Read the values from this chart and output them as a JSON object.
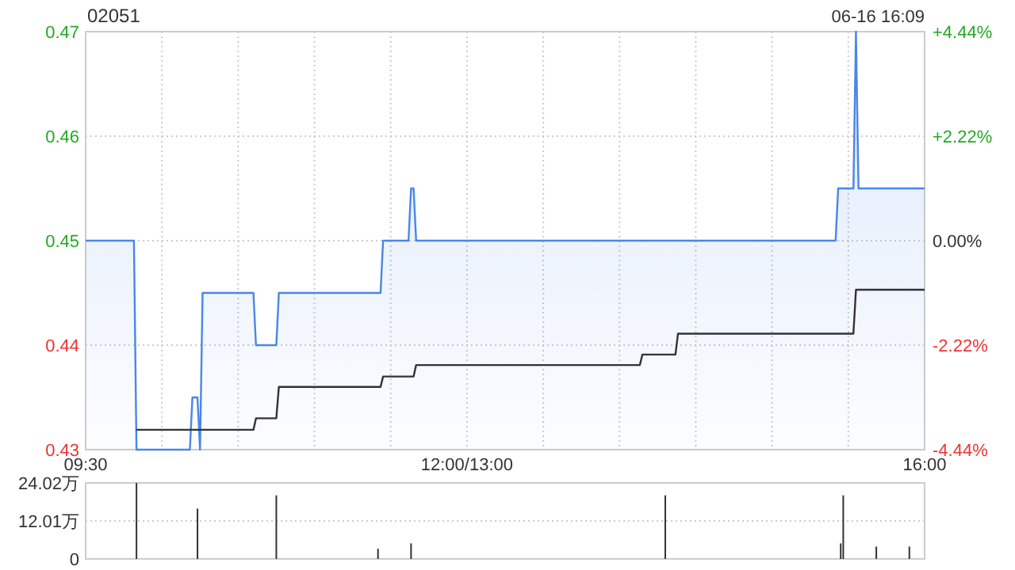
{
  "chart_data": [
    {
      "type": "line",
      "title": "02051",
      "annotations": [
        "06-16 16:09"
      ],
      "categories": [
        "09:30",
        null,
        null,
        null,
        null,
        null,
        null,
        null,
        null,
        null,
        null,
        null,
        null,
        null,
        null,
        null,
        null,
        null,
        null,
        null,
        null,
        null,
        null,
        null,
        null,
        null,
        null,
        null,
        null,
        null,
        null,
        null,
        null,
        null,
        null,
        null,
        null,
        null,
        null,
        null,
        null,
        null,
        null,
        null,
        null,
        null,
        null,
        null,
        null,
        null,
        null,
        null,
        null,
        null,
        null,
        null,
        null,
        null,
        null,
        null,
        null,
        null,
        null,
        null,
        null,
        null,
        null,
        null,
        null,
        null,
        null,
        null,
        null,
        null,
        null,
        null,
        null,
        null,
        null,
        null,
        null,
        null,
        null,
        null,
        null,
        null,
        null,
        null,
        null,
        null,
        null,
        null,
        null,
        null,
        null,
        null,
        null,
        null,
        null,
        null,
        null,
        null,
        null,
        null,
        null,
        null,
        null,
        null,
        null,
        null,
        null,
        null,
        null,
        null,
        null,
        null,
        null,
        null,
        null,
        null,
        null,
        null,
        null,
        null,
        null,
        null,
        null,
        null,
        null,
        null,
        null,
        null,
        null,
        null,
        null,
        null,
        null,
        null,
        null,
        null,
        null,
        null,
        null,
        null,
        null,
        null,
        null,
        null,
        null,
        null,
        "12:00/13:00",
        null,
        null,
        null,
        null,
        null,
        null,
        null,
        null,
        null,
        null,
        null,
        null,
        null,
        null,
        null,
        null,
        null,
        null,
        null,
        null,
        null,
        null,
        null,
        null,
        null,
        null,
        null,
        null,
        null,
        null,
        null,
        null,
        null,
        null,
        null,
        null,
        null,
        null,
        null,
        null,
        null,
        null,
        null,
        null,
        null,
        null,
        null,
        null,
        null,
        null,
        null,
        null,
        null,
        null,
        null,
        null,
        null,
        null,
        null,
        null,
        null,
        null,
        null,
        null,
        null,
        null,
        null,
        null,
        null,
        null,
        null,
        null,
        null,
        null,
        null,
        null,
        null,
        null,
        null,
        null,
        null,
        null,
        null,
        null,
        null,
        null,
        null,
        null,
        null,
        null,
        null,
        null,
        null,
        null,
        null,
        null,
        null,
        null,
        null,
        null,
        null,
        null,
        null,
        null,
        null,
        null,
        null,
        null,
        null,
        null,
        null,
        null,
        null,
        null,
        null,
        null,
        null,
        null,
        null,
        null,
        null,
        null,
        null,
        null,
        null,
        null,
        null,
        null,
        null,
        null,
        null,
        null,
        null,
        null,
        null,
        null,
        null,
        null,
        null,
        null,
        null,
        null,
        null,
        null,
        null,
        null,
        null,
        null,
        null,
        null,
        null,
        null,
        null,
        null,
        null,
        null,
        null,
        null,
        null,
        null,
        null,
        null,
        null,
        null,
        null,
        null,
        null,
        null,
        null,
        null,
        null,
        null,
        null,
        null,
        null,
        null,
        null,
        null,
        null,
        "16:00"
      ],
      "series": [
        {
          "type": "area",
          "color": "#4a86e8",
          "values": [
            0.45,
            0.45,
            0.45,
            0.45,
            0.45,
            0.45,
            0.45,
            0.45,
            0.45,
            0.45,
            0.45,
            0.45,
            0.45,
            0.45,
            0.45,
            0.45,
            0.45,
            0.45,
            0.45,
            0.45,
            0.43,
            0.43,
            0.43,
            0.43,
            0.43,
            0.43,
            0.43,
            0.43,
            0.43,
            0.43,
            0.43,
            0.43,
            0.43,
            0.43,
            0.43,
            0.43,
            0.43,
            0.43,
            0.43,
            0.43,
            0.43,
            0.43,
            0.435,
            0.435,
            0.435,
            0.43,
            0.445,
            0.445,
            0.445,
            0.445,
            0.445,
            0.445,
            0.445,
            0.445,
            0.445,
            0.445,
            0.445,
            0.445,
            0.445,
            0.445,
            0.445,
            0.445,
            0.445,
            0.445,
            0.445,
            0.445,
            0.445,
            0.44,
            0.44,
            0.44,
            0.44,
            0.44,
            0.44,
            0.44,
            0.44,
            0.44,
            0.445,
            0.445,
            0.445,
            0.445,
            0.445,
            0.445,
            0.445,
            0.445,
            0.445,
            0.445,
            0.445,
            0.445,
            0.445,
            0.445,
            0.445,
            0.445,
            0.445,
            0.445,
            0.445,
            0.445,
            0.445,
            0.445,
            0.445,
            0.445,
            0.445,
            0.445,
            0.445,
            0.445,
            0.445,
            0.445,
            0.445,
            0.445,
            0.445,
            0.445,
            0.445,
            0.445,
            0.445,
            0.445,
            0.445,
            0.445,
            0.445,
            0.45,
            0.45,
            0.45,
            0.45,
            0.45,
            0.45,
            0.45,
            0.45,
            0.45,
            0.45,
            0.45,
            0.455,
            0.455,
            0.45,
            0.45,
            0.45,
            0.45,
            0.45,
            0.45,
            0.45,
            0.45,
            0.45,
            0.45,
            0.45,
            0.45,
            0.45,
            0.45,
            0.45,
            0.45,
            0.45,
            0.45,
            0.45,
            0.45,
            0.45,
            0.45,
            0.45,
            0.45,
            0.45,
            0.45,
            0.45,
            0.45,
            0.45,
            0.45,
            0.45,
            0.45,
            0.45,
            0.45,
            0.45,
            0.45,
            0.45,
            0.45,
            0.45,
            0.45,
            0.45,
            0.45,
            0.45,
            0.45,
            0.45,
            0.45,
            0.45,
            0.45,
            0.45,
            0.45,
            0.45,
            0.45,
            0.45,
            0.45,
            0.45,
            0.45,
            0.45,
            0.45,
            0.45,
            0.45,
            0.45,
            0.45,
            0.45,
            0.45,
            0.45,
            0.45,
            0.45,
            0.45,
            0.45,
            0.45,
            0.45,
            0.45,
            0.45,
            0.45,
            0.45,
            0.45,
            0.45,
            0.45,
            0.45,
            0.45,
            0.45,
            0.45,
            0.45,
            0.45,
            0.45,
            0.45,
            0.45,
            0.45,
            0.45,
            0.45,
            0.45,
            0.45,
            0.45,
            0.45,
            0.45,
            0.45,
            0.45,
            0.45,
            0.45,
            0.45,
            0.45,
            0.45,
            0.45,
            0.45,
            0.45,
            0.45,
            0.45,
            0.45,
            0.45,
            0.45,
            0.45,
            0.45,
            0.45,
            0.45,
            0.45,
            0.45,
            0.45,
            0.45,
            0.45,
            0.45,
            0.45,
            0.45,
            0.45,
            0.45,
            0.45,
            0.45,
            0.45,
            0.45,
            0.45,
            0.45,
            0.45,
            0.45,
            0.45,
            0.45,
            0.45,
            0.45,
            0.45,
            0.45,
            0.45,
            0.45,
            0.45,
            0.45,
            0.45,
            0.45,
            0.45,
            0.45,
            0.45,
            0.45,
            0.45,
            0.45,
            0.45,
            0.45,
            0.45,
            0.45,
            0.45,
            0.45,
            0.45,
            0.45,
            0.45,
            0.45,
            0.45,
            0.45,
            0.45,
            0.45,
            0.45,
            0.45,
            0.455,
            0.455,
            0.455,
            0.455,
            0.455,
            0.455,
            0.455,
            0.47,
            0.455,
            0.455,
            0.455,
            0.455,
            0.455,
            0.455,
            0.455,
            0.455,
            0.455,
            0.455,
            0.455,
            0.455,
            0.455,
            0.455,
            0.455,
            0.455,
            0.455,
            0.455,
            0.455,
            0.455,
            0.455,
            0.455,
            0.455,
            0.455,
            0.455,
            0.455,
            0.455
          ]
        },
        {
          "type": "line",
          "color": "#333333",
          "values": [
            null,
            null,
            null,
            null,
            null,
            null,
            null,
            null,
            null,
            null,
            null,
            null,
            null,
            null,
            null,
            null,
            null,
            null,
            null,
            null,
            0.4319,
            0.4319,
            0.4319,
            0.4319,
            0.4319,
            0.4319,
            0.4319,
            0.4319,
            0.4319,
            0.4319,
            0.4319,
            0.4319,
            0.4319,
            0.4319,
            0.4319,
            0.4319,
            0.4319,
            0.4319,
            0.4319,
            0.4319,
            0.4319,
            0.4319,
            0.4319,
            0.4319,
            0.4319,
            0.4319,
            0.4319,
            0.4319,
            0.4319,
            0.4319,
            0.4319,
            0.4319,
            0.4319,
            0.4319,
            0.4319,
            0.4319,
            0.4319,
            0.4319,
            0.4319,
            0.4319,
            0.4319,
            0.4319,
            0.4319,
            0.4319,
            0.4319,
            0.4319,
            0.4319,
            0.433,
            0.433,
            0.433,
            0.433,
            0.433,
            0.433,
            0.433,
            0.433,
            0.433,
            0.436,
            0.436,
            0.436,
            0.436,
            0.436,
            0.436,
            0.436,
            0.436,
            0.436,
            0.436,
            0.436,
            0.436,
            0.436,
            0.436,
            0.436,
            0.436,
            0.436,
            0.436,
            0.436,
            0.436,
            0.436,
            0.436,
            0.436,
            0.436,
            0.436,
            0.436,
            0.436,
            0.436,
            0.436,
            0.436,
            0.436,
            0.436,
            0.436,
            0.436,
            0.436,
            0.436,
            0.436,
            0.436,
            0.436,
            0.436,
            0.436,
            0.437,
            0.437,
            0.437,
            0.437,
            0.437,
            0.437,
            0.437,
            0.437,
            0.437,
            0.437,
            0.437,
            0.437,
            0.437,
            0.4381,
            0.4381,
            0.4381,
            0.4381,
            0.4381,
            0.4381,
            0.4381,
            0.4381,
            0.4381,
            0.4381,
            0.4381,
            0.4381,
            0.4381,
            0.4381,
            0.4381,
            0.4381,
            0.4381,
            0.4381,
            0.4381,
            0.4381,
            0.4381,
            0.4381,
            0.4381,
            0.4381,
            0.4381,
            0.4381,
            0.4381,
            0.4381,
            0.4381,
            0.4381,
            0.4381,
            0.4381,
            0.4381,
            0.4381,
            0.4381,
            0.4381,
            0.4381,
            0.4381,
            0.4381,
            0.4381,
            0.4381,
            0.4381,
            0.4381,
            0.4381,
            0.4381,
            0.4381,
            0.4381,
            0.4381,
            0.4381,
            0.4381,
            0.4381,
            0.4381,
            0.4381,
            0.4381,
            0.4381,
            0.4381,
            0.4381,
            0.4381,
            0.4381,
            0.4381,
            0.4381,
            0.4381,
            0.4381,
            0.4381,
            0.4381,
            0.4381,
            0.4381,
            0.4381,
            0.4381,
            0.4381,
            0.4381,
            0.4381,
            0.4381,
            0.4381,
            0.4381,
            0.4381,
            0.4381,
            0.4381,
            0.4381,
            0.4381,
            0.4381,
            0.4381,
            0.4381,
            0.4381,
            0.4381,
            0.4381,
            0.4381,
            0.4381,
            0.4381,
            0.4391,
            0.4391,
            0.4391,
            0.4391,
            0.4391,
            0.4391,
            0.4391,
            0.4391,
            0.4391,
            0.4391,
            0.4391,
            0.4391,
            0.4391,
            0.4391,
            0.4411,
            0.4411,
            0.4411,
            0.4411,
            0.4411,
            0.4411,
            0.4411,
            0.4411,
            0.4411,
            0.4411,
            0.4411,
            0.4411,
            0.4411,
            0.4411,
            0.4411,
            0.4411,
            0.4411,
            0.4411,
            0.4411,
            0.4411,
            0.4411,
            0.4411,
            0.4411,
            0.4411,
            0.4411,
            0.4411,
            0.4411,
            0.4411,
            0.4411,
            0.4411,
            0.4411,
            0.4411,
            0.4411,
            0.4411,
            0.4411,
            0.4411,
            0.4411,
            0.4411,
            0.4411,
            0.4411,
            0.4411,
            0.4411,
            0.4411,
            0.4411,
            0.4411,
            0.4411,
            0.4411,
            0.4411,
            0.4411,
            0.4411,
            0.4411,
            0.4411,
            0.4411,
            0.4411,
            0.4411,
            0.4411,
            0.4411,
            0.4411,
            0.4411,
            0.4411,
            0.4411,
            0.4411,
            0.4411,
            0.4411,
            0.4411,
            0.4411,
            0.4411,
            0.4411,
            0.4411,
            0.4411,
            0.4453,
            0.4453,
            0.4453,
            0.4453,
            0.4453,
            0.4453,
            0.4453,
            0.4453,
            0.4453,
            0.4453,
            0.4453,
            0.4453,
            0.4453,
            0.4453,
            0.4453,
            0.4453,
            0.4453,
            0.4453,
            0.4453,
            0.4453,
            0.4453,
            0.4453,
            0.4453,
            0.4453,
            0.4453,
            0.4453,
            0.4453,
            0.4453
          ]
        }
      ],
      "ylim": [
        0.43,
        0.47
      ],
      "yticks": [
        0.43,
        0.44,
        0.45,
        0.46,
        0.47
      ],
      "y2lim": [
        -4.44,
        4.44
      ],
      "y2ticks": [
        {
          "value": -4.44,
          "label": "-4.44%"
        },
        {
          "value": -2.22,
          "label": "-2.22%"
        },
        {
          "value": 0,
          "label": "0.00%"
        },
        {
          "value": 2.22,
          "label": "+2.22%"
        },
        {
          "value": 4.44,
          "label": "+4.44%"
        }
      ],
      "grid": true
    },
    {
      "type": "bar",
      "color": "#333333",
      "categories": [
        null,
        null,
        null,
        null,
        null,
        null,
        null,
        null,
        null,
        null,
        null,
        null,
        null,
        null,
        null,
        null,
        null,
        null,
        null,
        null,
        null,
        null,
        null,
        null,
        null,
        null,
        null,
        null,
        null,
        null,
        null,
        null,
        null,
        null,
        null,
        null,
        null,
        null,
        null,
        null,
        null,
        null,
        null,
        null,
        null,
        null,
        null,
        null,
        null,
        null,
        null,
        null,
        null,
        null,
        null,
        null,
        null,
        null,
        null,
        null,
        null,
        null,
        null,
        null,
        null,
        null,
        null,
        null,
        null,
        null,
        null,
        null,
        null,
        null,
        null,
        null,
        null,
        null,
        null,
        null,
        null,
        null,
        null,
        null,
        null,
        null,
        null,
        null,
        null,
        null,
        null,
        null,
        null,
        null,
        null,
        null,
        null,
        null,
        null,
        null,
        null,
        null,
        null,
        null,
        null,
        null,
        null,
        null,
        null,
        null,
        null,
        null,
        null,
        null,
        null,
        null,
        null,
        null,
        null,
        null,
        null,
        null,
        null,
        null,
        null,
        null,
        null,
        null,
        null,
        null,
        null,
        null,
        null,
        null,
        null,
        null,
        null,
        null,
        null,
        null,
        null,
        null,
        null,
        null,
        null,
        null,
        null,
        null,
        null,
        null,
        null,
        null,
        null,
        null,
        null,
        null,
        null,
        null,
        null,
        null,
        null,
        null,
        null,
        null,
        null,
        null,
        null,
        null,
        null,
        null,
        null,
        null,
        null,
        null,
        null,
        null,
        null,
        null,
        null,
        null,
        null,
        null,
        null,
        null,
        null,
        null,
        null,
        null,
        null,
        null,
        null,
        null,
        null,
        null,
        null,
        null,
        null,
        null,
        null,
        null,
        null,
        null,
        null,
        null,
        null,
        null,
        null,
        null,
        null,
        null,
        null,
        null,
        null,
        null,
        null,
        null,
        null,
        null,
        null,
        null,
        null,
        null,
        null,
        null,
        null,
        null,
        null,
        null,
        null,
        null,
        null,
        null,
        null,
        null,
        null,
        null,
        null,
        null,
        null,
        null,
        null,
        null,
        null,
        null,
        null,
        null,
        null,
        null,
        null,
        null,
        null,
        null,
        null,
        null,
        null,
        null,
        null,
        null,
        null,
        null,
        null,
        null,
        null,
        null,
        null,
        null,
        null,
        null,
        null,
        null,
        null,
        null,
        null,
        null,
        null,
        null,
        null,
        null,
        null,
        null,
        null,
        null,
        null,
        null,
        null,
        null,
        null,
        null,
        null,
        null,
        null,
        null,
        null,
        null,
        null,
        null,
        null,
        null,
        null,
        null,
        null,
        null,
        null,
        null,
        null,
        null,
        null,
        null,
        null,
        null,
        null,
        null,
        null,
        null,
        null,
        null,
        null,
        null,
        null,
        null,
        null,
        null,
        null,
        null,
        null,
        null,
        null,
        null,
        null,
        null,
        null
      ],
      "values": [
        null,
        null,
        null,
        null,
        null,
        null,
        null,
        null,
        null,
        null,
        null,
        null,
        null,
        null,
        null,
        null,
        null,
        null,
        null,
        null,
        24.0,
        null,
        null,
        null,
        null,
        null,
        null,
        null,
        null,
        null,
        null,
        null,
        null,
        null,
        null,
        null,
        null,
        null,
        null,
        null,
        null,
        null,
        null,
        null,
        15.9,
        null,
        null,
        null,
        null,
        null,
        null,
        null,
        null,
        null,
        null,
        null,
        null,
        null,
        null,
        null,
        null,
        null,
        null,
        null,
        null,
        null,
        null,
        null,
        null,
        null,
        null,
        null,
        null,
        null,
        null,
        20.1,
        null,
        null,
        null,
        null,
        null,
        null,
        null,
        null,
        null,
        null,
        null,
        null,
        null,
        null,
        null,
        null,
        null,
        null,
        null,
        null,
        null,
        null,
        null,
        null,
        null,
        null,
        null,
        null,
        null,
        null,
        null,
        null,
        null,
        null,
        null,
        null,
        null,
        null,
        null,
        3.2,
        null,
        null,
        null,
        null,
        null,
        null,
        null,
        null,
        null,
        null,
        null,
        null,
        4.9,
        null,
        null,
        null,
        null,
        null,
        null,
        null,
        null,
        null,
        null,
        null,
        null,
        null,
        null,
        null,
        null,
        null,
        null,
        null,
        null,
        null,
        null,
        null,
        null,
        null,
        null,
        null,
        null,
        null,
        null,
        null,
        null,
        null,
        null,
        null,
        null,
        null,
        null,
        null,
        null,
        null,
        null,
        null,
        null,
        null,
        null,
        null,
        null,
        null,
        null,
        null,
        null,
        null,
        null,
        null,
        null,
        null,
        null,
        null,
        null,
        null,
        null,
        null,
        null,
        null,
        null,
        null,
        null,
        null,
        null,
        null,
        null,
        null,
        null,
        null,
        null,
        null,
        null,
        null,
        null,
        null,
        null,
        null,
        null,
        null,
        null,
        null,
        null,
        null,
        null,
        null,
        null,
        null,
        null,
        null,
        null,
        null,
        null,
        null,
        20.1,
        null,
        null,
        null,
        null,
        null,
        null,
        null,
        null,
        null,
        null,
        null,
        null,
        null,
        null,
        null,
        null,
        null,
        null,
        null,
        null,
        null,
        null,
        null,
        null,
        null,
        null,
        null,
        null,
        null,
        null,
        null,
        null,
        null,
        null,
        null,
        null,
        null,
        null,
        null,
        null,
        null,
        null,
        null,
        null,
        null,
        null,
        null,
        null,
        null,
        null,
        null,
        null,
        null,
        null,
        null,
        null,
        null,
        null,
        null,
        null,
        null,
        null,
        null,
        null,
        null,
        null,
        null,
        null,
        4.9,
        20.1,
        null,
        null,
        null,
        null,
        null,
        null,
        null,
        null,
        null,
        null,
        null,
        null,
        3.9,
        null,
        null,
        null,
        null,
        null,
        null,
        null,
        null,
        null,
        null,
        null,
        null,
        3.9,
        null,
        null,
        null,
        null,
        null,
        null
      ],
      "ylim": [
        0,
        24.02
      ],
      "yticks": [
        0,
        {
          "value": 12.01,
          "label": "12.01万"
        },
        {
          "value": 24.02,
          "label": "24.02万"
        }
      ],
      "grid": "y",
      "tick_labels": "y"
    }
  ]
}
